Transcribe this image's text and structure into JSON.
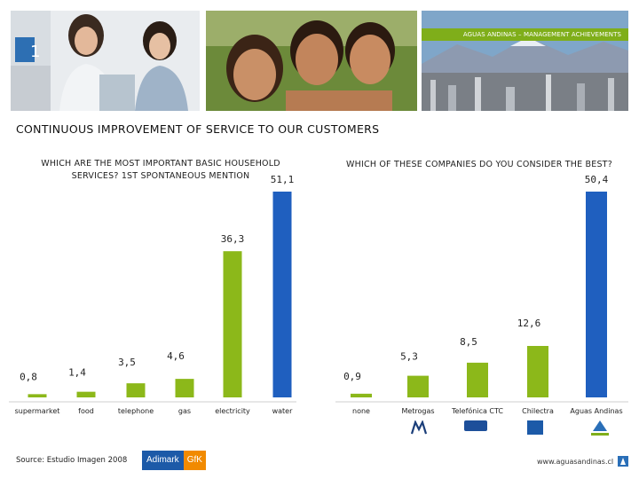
{
  "header": {
    "banner_text": "AGUAS ANDINAS – MANAGEMENT ACHIEVEMENTS",
    "title": "CONTINUOUS IMPROVEMENT OF SERVICE TO OUR CUSTOMERS"
  },
  "colors": {
    "green": "#8cb81a",
    "blue": "#1f5fbf",
    "banner_green": "#7fae1a"
  },
  "chart_data": [
    {
      "type": "bar",
      "title": "WHICH ARE THE MOST IMPORTANT BASIC HOUSEHOLD SERVICES? 1ST SPONTANEOUS MENTION",
      "categories": [
        "supermarket",
        "food",
        "telephone",
        "gas",
        "electricity",
        "water"
      ],
      "values": [
        0.8,
        1.4,
        3.5,
        4.6,
        36.3,
        51.1
      ],
      "value_labels": [
        "0,8",
        "1,4",
        "3,5",
        "4,6",
        "36,3",
        "51,1"
      ],
      "highlight_index": 5,
      "ylim": [
        0,
        55
      ],
      "grid": false,
      "legend": "none"
    },
    {
      "type": "bar",
      "title": "WHICH OF THESE COMPANIES DO YOU CONSIDER THE BEST?",
      "categories": [
        "none",
        "Metrogas",
        "Telefónica CTC",
        "Chilectra",
        "Aguas Andinas"
      ],
      "values": [
        0.9,
        5.3,
        8.5,
        12.6,
        50.4
      ],
      "value_labels": [
        "0,9",
        "5,3",
        "8,5",
        "12,6",
        "50,4"
      ],
      "highlight_index": 4,
      "ylim": [
        0,
        53
      ],
      "grid": false,
      "legend": "none"
    }
  ],
  "footer": {
    "source": "Source: Estudio Imagen 2008",
    "adimark_a": "Adimark",
    "adimark_b": "GfK",
    "url": "www.aguasandinas.cl"
  },
  "icons": [
    "aguas-andinas-logo-icon",
    "metrogas-logo-icon",
    "telefonica-logo-icon",
    "chilectra-logo-icon"
  ]
}
